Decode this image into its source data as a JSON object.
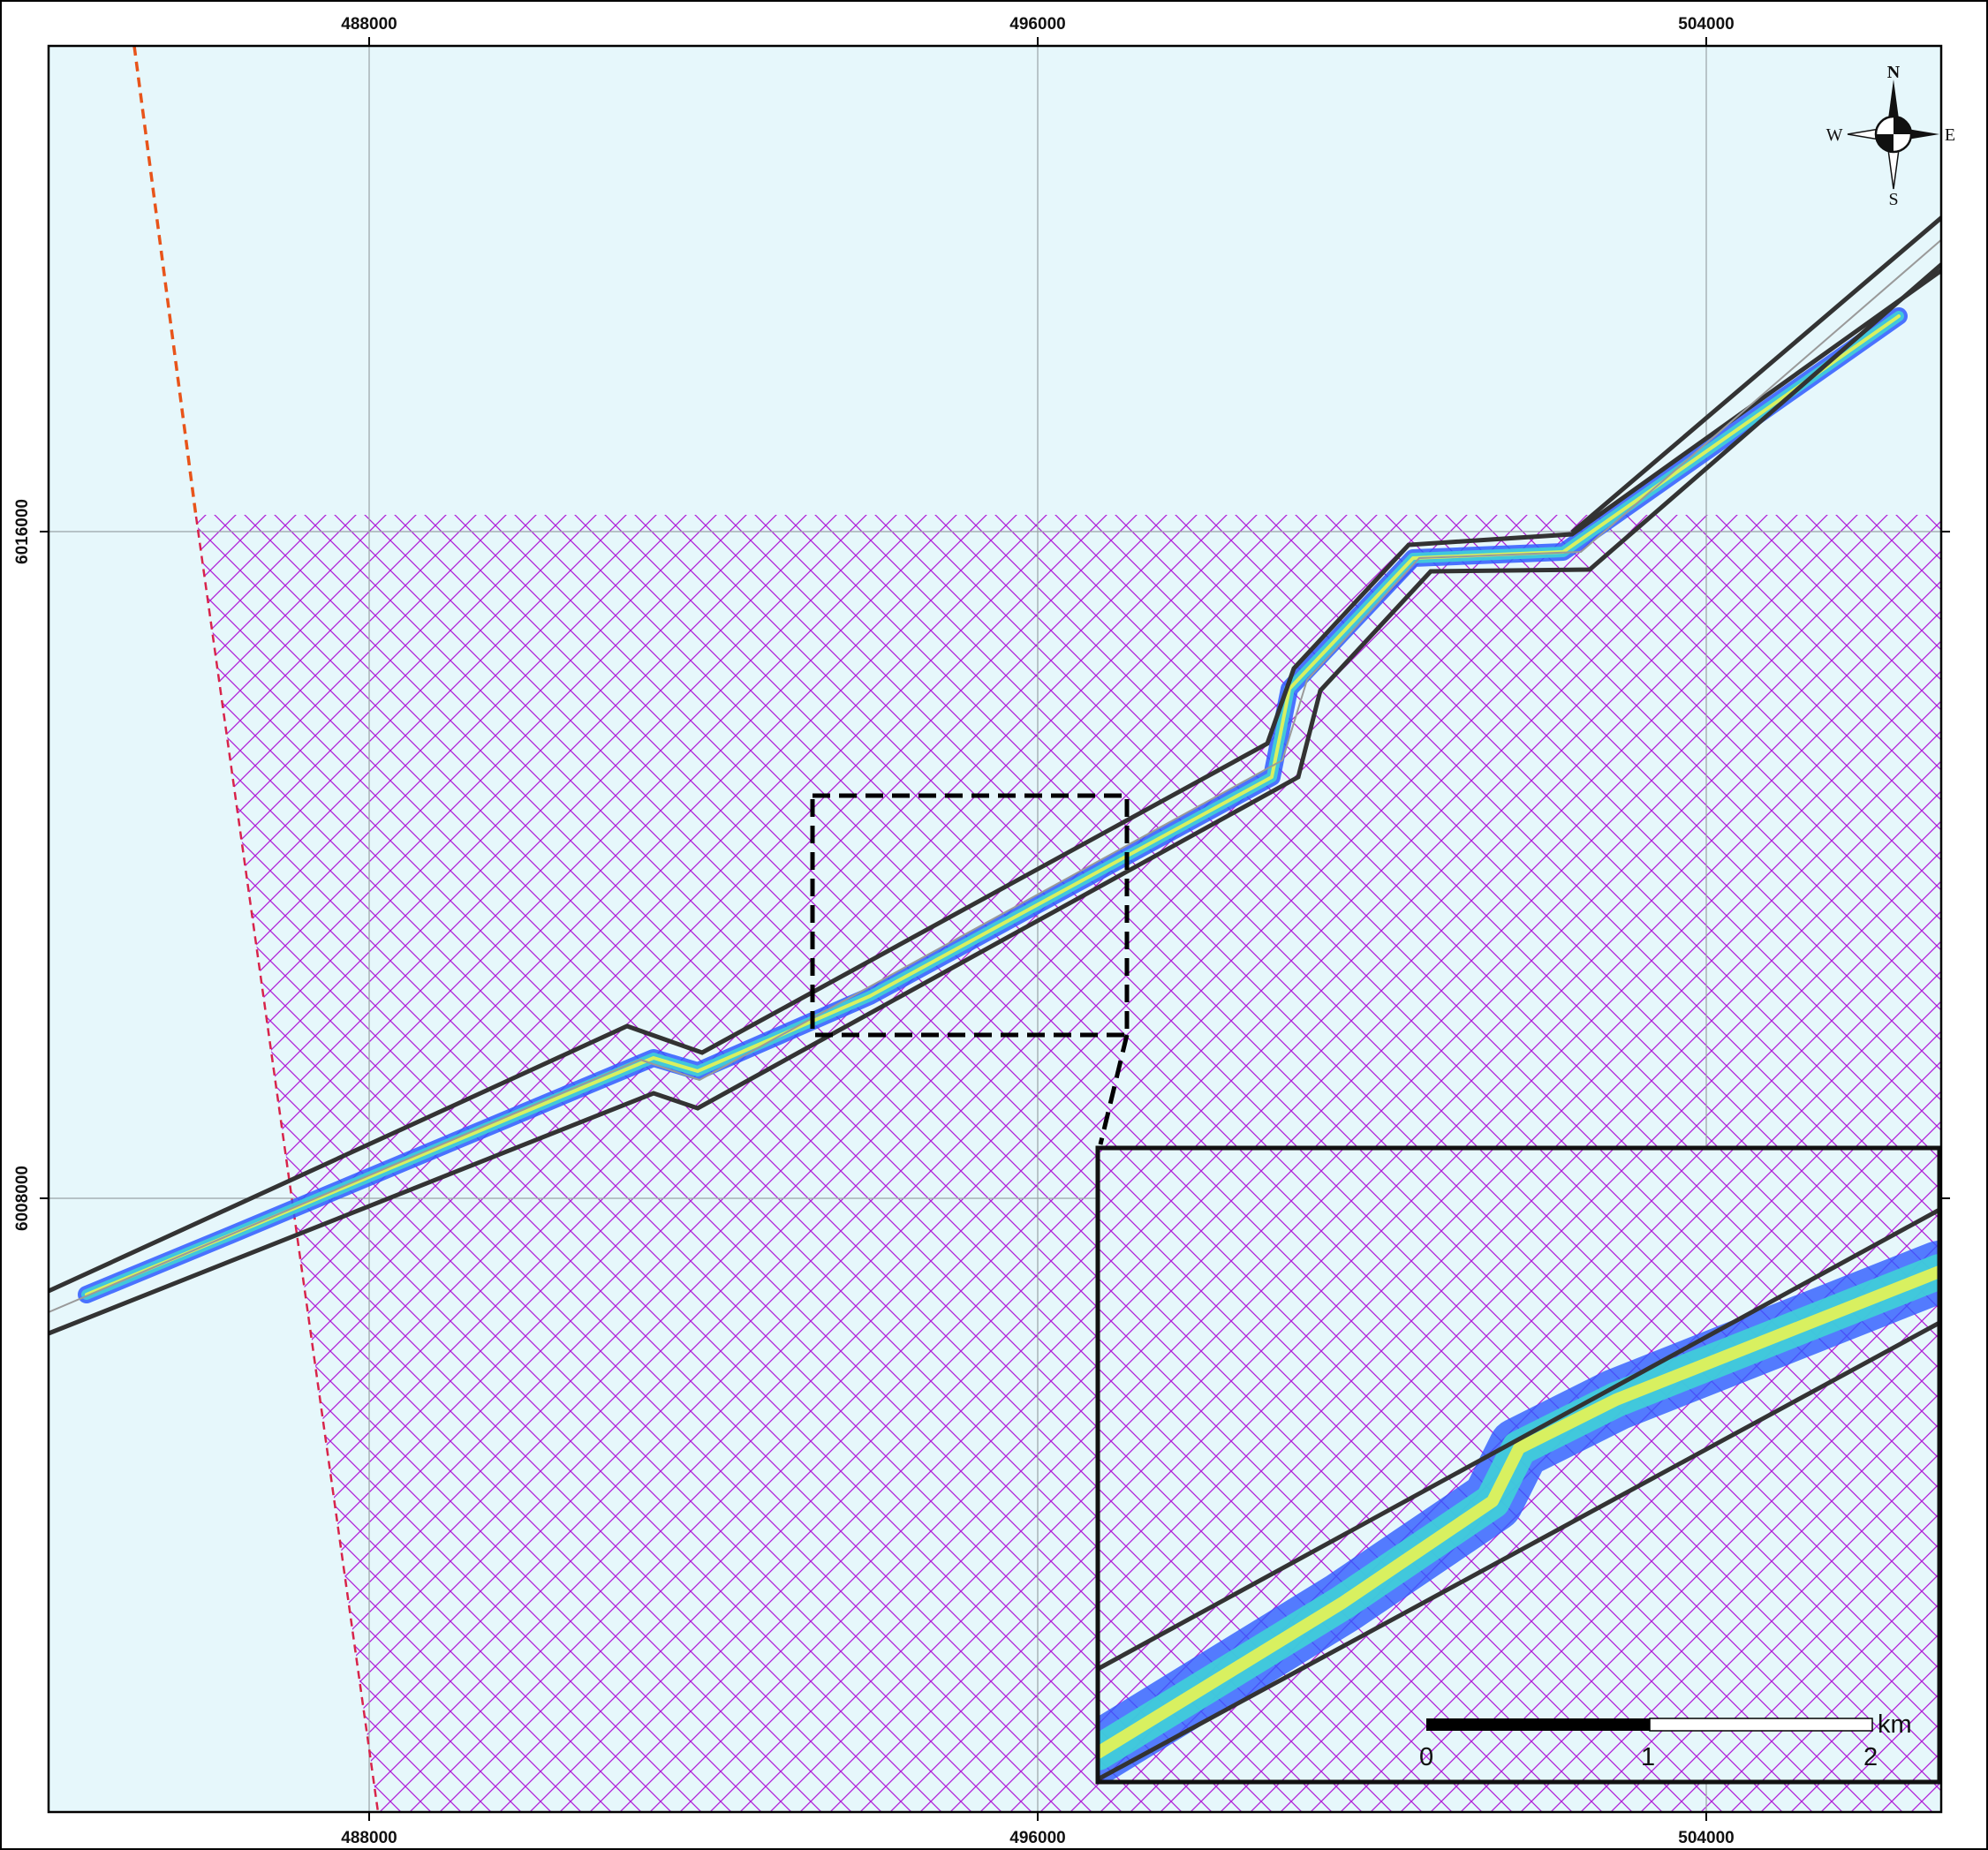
{
  "map": {
    "x_ticks": [
      "488000",
      "496000",
      "504000"
    ],
    "y_ticks": [
      "6016000",
      "6008000"
    ]
  },
  "compass": {
    "n": "N",
    "s": "S",
    "e": "E",
    "w": "W"
  },
  "scale_bar": {
    "labels": [
      "0",
      "1",
      "2"
    ],
    "unit": "km"
  },
  "colors": {
    "water": "#e6f7fb",
    "hatch": "#b020d8",
    "boundary_line": "#e8541a",
    "corridor": "#333333",
    "centerline": "#9a9a9a",
    "plume_low": "#2e5bff",
    "plume_mid": "#3fd0d8",
    "plume_high": "#d8f060"
  }
}
